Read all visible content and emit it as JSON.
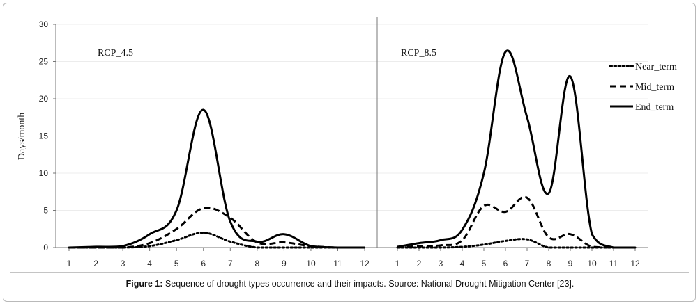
{
  "chart_data": [
    {
      "type": "line",
      "panel_label": "RCP_4.5",
      "ylabel": "Days/month",
      "ylim": [
        0,
        30
      ],
      "yticks": [
        0,
        5,
        10,
        15,
        20,
        25,
        30
      ],
      "xticks": [
        1,
        2,
        3,
        4,
        5,
        6,
        7,
        8,
        9,
        10,
        11,
        12
      ],
      "x": [
        1,
        2,
        3,
        4,
        5,
        6,
        7,
        8,
        9,
        10,
        11,
        12
      ],
      "series": [
        {
          "name": "Near_term",
          "style": "dotted",
          "values": [
            0,
            0,
            0,
            0.2,
            1.0,
            2.0,
            0.8,
            0,
            0,
            0,
            0,
            0
          ]
        },
        {
          "name": "Mid_term",
          "style": "dashed",
          "values": [
            0,
            0,
            0,
            0.6,
            2.5,
            5.3,
            4.0,
            0.7,
            0.7,
            0.2,
            0,
            0
          ]
        },
        {
          "name": "End_term",
          "style": "solid",
          "values": [
            0,
            0.1,
            0.2,
            1.8,
            5.0,
            18.5,
            3.5,
            0.8,
            1.8,
            0.2,
            0,
            0
          ]
        }
      ]
    },
    {
      "type": "line",
      "panel_label": "RCP_8.5",
      "ylim": [
        0,
        30
      ],
      "xticks": [
        1,
        2,
        3,
        4,
        5,
        6,
        7,
        8,
        9,
        10,
        11,
        12
      ],
      "x": [
        1,
        2,
        3,
        4,
        5,
        6,
        7,
        8,
        9,
        10,
        11,
        12
      ],
      "legend": "top-right",
      "series": [
        {
          "name": "Near_term",
          "style": "dotted",
          "values": [
            0,
            0,
            0,
            0.1,
            0.4,
            0.9,
            1.1,
            0,
            0,
            0,
            0,
            0
          ]
        },
        {
          "name": "Mid_term",
          "style": "dashed",
          "values": [
            0,
            0.2,
            0.3,
            1.0,
            5.6,
            4.8,
            6.7,
            1.4,
            1.8,
            0.1,
            0,
            0
          ]
        },
        {
          "name": "End_term",
          "style": "solid",
          "values": [
            0.1,
            0.6,
            1.0,
            2.4,
            10.0,
            26.3,
            17.5,
            7.3,
            23.0,
            1.8,
            0,
            0
          ]
        }
      ]
    }
  ],
  "caption": {
    "label": "Figure 1:",
    "text": " Sequence of drought types occurrence and their impacts. Source: National Drought Mitigation Center [23]."
  }
}
